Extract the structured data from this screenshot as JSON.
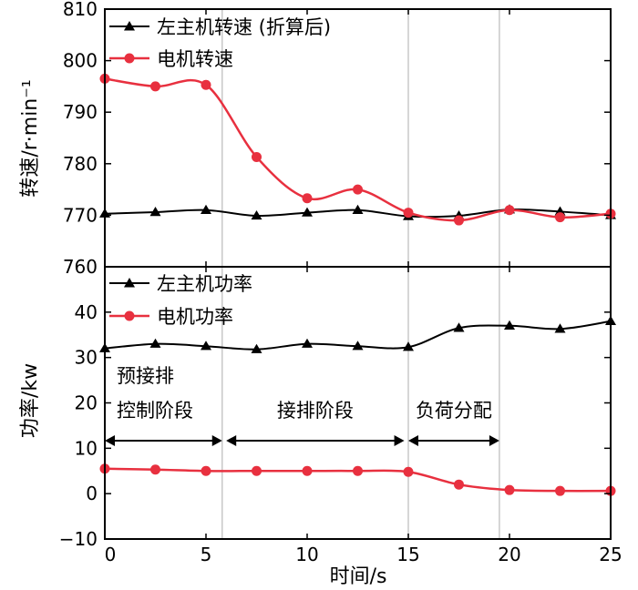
{
  "chart_data": [
    {
      "type": "line",
      "x": [
        0,
        2.5,
        5,
        7.5,
        10,
        12.5,
        15,
        17.5,
        20,
        22.5,
        25
      ],
      "xlim": [
        0,
        25
      ],
      "ylim": [
        760,
        810
      ],
      "yticks": [
        760,
        770,
        780,
        790,
        800,
        810
      ],
      "ylabel": "转速/r·min⁻¹",
      "legend_position": "top-left",
      "series": [
        {
          "name": "左主机转速 (折算后)",
          "color": "#000000",
          "marker": "triangle",
          "values": [
            770.3,
            770.6,
            771.0,
            769.9,
            770.5,
            771.0,
            769.8,
            769.9,
            771.1,
            770.7,
            770.0
          ]
        },
        {
          "name": "电机转速",
          "color": "#e8303f",
          "marker": "circle",
          "values": [
            796.5,
            795.0,
            795.3,
            781.3,
            773.3,
            775.0,
            770.5,
            769.0,
            771.0,
            769.6,
            770.3
          ]
        }
      ]
    },
    {
      "type": "line",
      "x": [
        0,
        2.5,
        5,
        7.5,
        10,
        12.5,
        15,
        17.5,
        20,
        22.5,
        25
      ],
      "xlim": [
        0,
        25
      ],
      "ylim": [
        -10,
        50
      ],
      "xticks": [
        0,
        5,
        10,
        15,
        20,
        25
      ],
      "yticks": [
        -10,
        0,
        10,
        20,
        30,
        40
      ],
      "xlabel": "时间/s",
      "ylabel": "功率/kw",
      "legend_position": "top-left",
      "series": [
        {
          "name": "左主机功率",
          "color": "#000000",
          "marker": "triangle",
          "values": [
            32.0,
            33.0,
            32.5,
            31.8,
            33.0,
            32.5,
            32.3,
            36.5,
            37.0,
            36.3,
            38.0
          ]
        },
        {
          "name": "电机功率",
          "color": "#e8303f",
          "marker": "circle",
          "values": [
            5.5,
            5.3,
            5.0,
            5.0,
            5.0,
            5.0,
            4.8,
            2.0,
            0.8,
            0.6,
            0.6
          ]
        }
      ],
      "phases": [
        {
          "label_line1": "预接排",
          "label_line2": "控制阶段",
          "start": 0,
          "end": 5.8
        },
        {
          "label_line1": "",
          "label_line2": "接排阶段",
          "start": 6.0,
          "end": 14.8
        },
        {
          "label_line1": "",
          "label_line2": "负荷分配",
          "start": 15.0,
          "end": 19.5
        }
      ],
      "phase_boundaries": [
        5.8,
        15.0,
        19.5
      ]
    }
  ]
}
